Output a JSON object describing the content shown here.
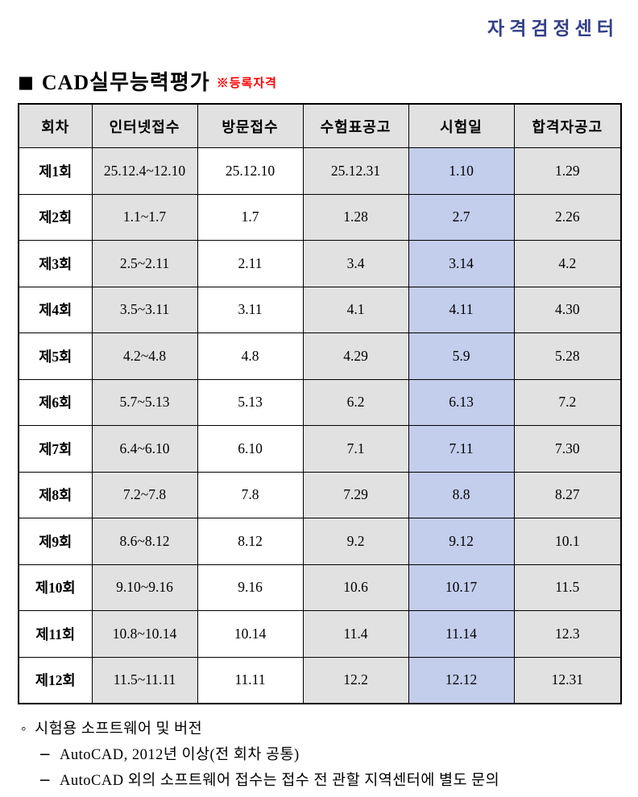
{
  "org": {
    "label": "자격검정센터"
  },
  "title": {
    "bullet": "■",
    "text": "CAD실무능력평가",
    "note": "※등록자격"
  },
  "table": {
    "headers": [
      "회차",
      "인터넷접수",
      "방문접수",
      "수험표공고",
      "시험일",
      "합격자공고"
    ],
    "rows": [
      [
        "제1회",
        "25.12.4~12.10",
        "25.12.10",
        "25.12.31",
        "1.10",
        "1.29"
      ],
      [
        "제2회",
        "1.1~1.7",
        "1.7",
        "1.28",
        "2.7",
        "2.26"
      ],
      [
        "제3회",
        "2.5~2.11",
        "2.11",
        "3.4",
        "3.14",
        "4.2"
      ],
      [
        "제4회",
        "3.5~3.11",
        "3.11",
        "4.1",
        "4.11",
        "4.30"
      ],
      [
        "제5회",
        "4.2~4.8",
        "4.8",
        "4.29",
        "5.9",
        "5.28"
      ],
      [
        "제6회",
        "5.7~5.13",
        "5.13",
        "6.2",
        "6.13",
        "7.2"
      ],
      [
        "제7회",
        "6.4~6.10",
        "6.10",
        "7.1",
        "7.11",
        "7.30"
      ],
      [
        "제8회",
        "7.2~7.8",
        "7.8",
        "7.29",
        "8.8",
        "8.27"
      ],
      [
        "제9회",
        "8.6~8.12",
        "8.12",
        "9.2",
        "9.12",
        "10.1"
      ],
      [
        "제10회",
        "9.10~9.16",
        "9.16",
        "10.6",
        "10.17",
        "11.5"
      ],
      [
        "제11회",
        "10.8~10.14",
        "10.14",
        "11.4",
        "11.14",
        "12.3"
      ],
      [
        "제12회",
        "11.5~11.11",
        "11.11",
        "12.2",
        "12.12",
        "12.31"
      ]
    ]
  },
  "notes": {
    "bullet": "◦",
    "heading": "시험용 소프트웨어 및 버전",
    "dash": "−",
    "items": [
      "AutoCAD, 2012년 이상(전 회차 공통)",
      "AutoCAD 외의 소프트웨어 접수는 접수 전 관할 지역센터에 별도 문의"
    ]
  },
  "colors": {
    "header_navy": "#333f87",
    "note_red": "#ff0000",
    "cell_gray": "#e1e1e1",
    "exam_day_bg": "#c3cdec",
    "exam_day_text": "#2130c0"
  }
}
